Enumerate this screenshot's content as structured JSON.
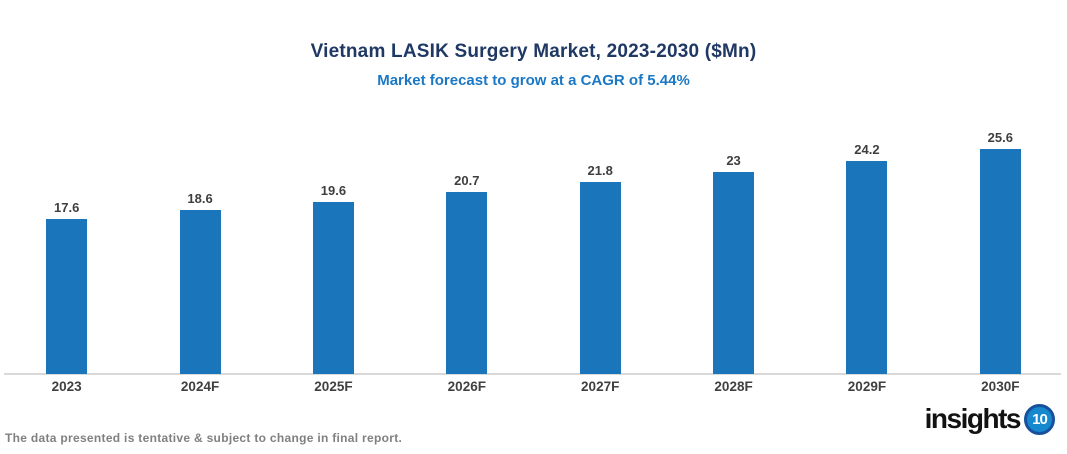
{
  "chart_data": {
    "type": "bar",
    "title": "Vietnam LASIK Surgery Market, 2023-2030 ($Mn)",
    "subtitle": "Market forecast to grow at a CAGR of 5.44%",
    "categories": [
      "2023",
      "2024F",
      "2025F",
      "2026F",
      "2027F",
      "2028F",
      "2029F",
      "2030F"
    ],
    "values": [
      17.6,
      18.6,
      19.6,
      20.7,
      21.8,
      23,
      24.2,
      25.6
    ],
    "value_labels": [
      "17.6",
      "18.6",
      "19.6",
      "20.7",
      "21.8",
      "23",
      "24.2",
      "25.6"
    ],
    "xlabel": "",
    "ylabel": "",
    "ylim": [
      0,
      30
    ],
    "grid": false,
    "legend": false,
    "bar_color": "#1B75BB",
    "axis_line_color": "#D9D9D9"
  },
  "colors": {
    "title": "#1F3864",
    "subtitle": "#1B78C4",
    "value_label": "#3F3F3F",
    "axis_label": "#404040",
    "footer_note": "#808080",
    "logo_badge_fill": "#1787CE",
    "logo_badge_ring": "#17519E"
  },
  "footer": {
    "note": "The data presented is tentative & subject to change in final report.",
    "logo_text": "insights",
    "logo_badge": "10"
  }
}
